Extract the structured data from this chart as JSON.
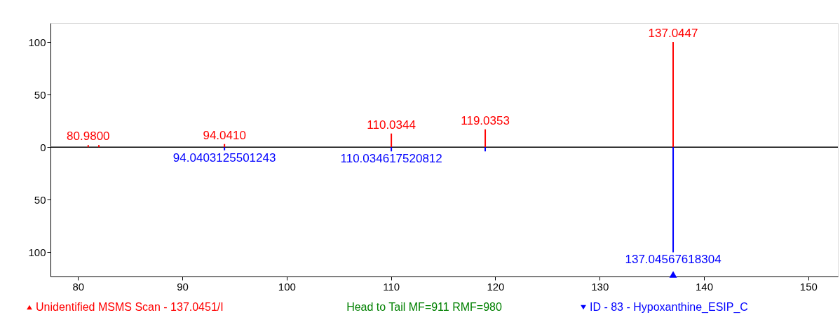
{
  "chart_data": {
    "type": "bar",
    "xlim": [
      77.7,
      152.5
    ],
    "xticks": [
      80,
      90,
      100,
      110,
      120,
      130,
      140,
      150
    ],
    "ylim": [
      -123,
      118
    ],
    "yticks": [
      {
        "value": -100,
        "label": "100"
      },
      {
        "value": -50,
        "label": "50"
      },
      0,
      50,
      100
    ],
    "grid": false,
    "legend": "bottom",
    "ref_lines": [
      {
        "axis": "y",
        "value": 0,
        "color": "#000000"
      }
    ],
    "series": [
      {
        "name": "Unidentified MSMS Scan - 137.0451/I",
        "color": "#ff0000",
        "x": [
          80.98,
          82.0,
          94.041,
          110.0344,
          119.0353,
          137.0447
        ],
        "values": [
          2,
          2,
          3,
          13,
          17,
          100
        ]
      },
      {
        "name": "ID - 83 - Hypoxanthine_ESIP_C",
        "color": "#0000ff",
        "x": [
          94.0403125501243,
          110.034617520812,
          119.03,
          137.04567618304
        ],
        "values": [
          -3,
          -4,
          -4,
          -100
        ]
      },
      {
        "type": "scatter",
        "marker": "triangle",
        "color": "#0000ff",
        "x": [
          137.04567618304
        ],
        "values": [
          -121
        ]
      }
    ],
    "annotations": [
      {
        "text": "80.9800",
        "x": 80.98,
        "y": 2
      },
      {
        "text": "94.0410",
        "x": 94.041,
        "y": 3
      },
      {
        "text": "110.0344",
        "x": 110.0344,
        "y": 13
      },
      {
        "text": "119.0353",
        "x": 119.0353,
        "y": 17
      },
      {
        "text": "137.0447",
        "x": 137.0447,
        "y": 100
      },
      {
        "text": "94.0403125501243",
        "x": 94.0403125501243,
        "y": -3
      },
      {
        "text": "110.034617520812",
        "x": 110.034617520812,
        "y": -4
      },
      {
        "text": "137.04567618304",
        "x": 137.04567618304,
        "y": -100
      },
      "Head to Tail MF=911 RMF=980"
    ]
  }
}
